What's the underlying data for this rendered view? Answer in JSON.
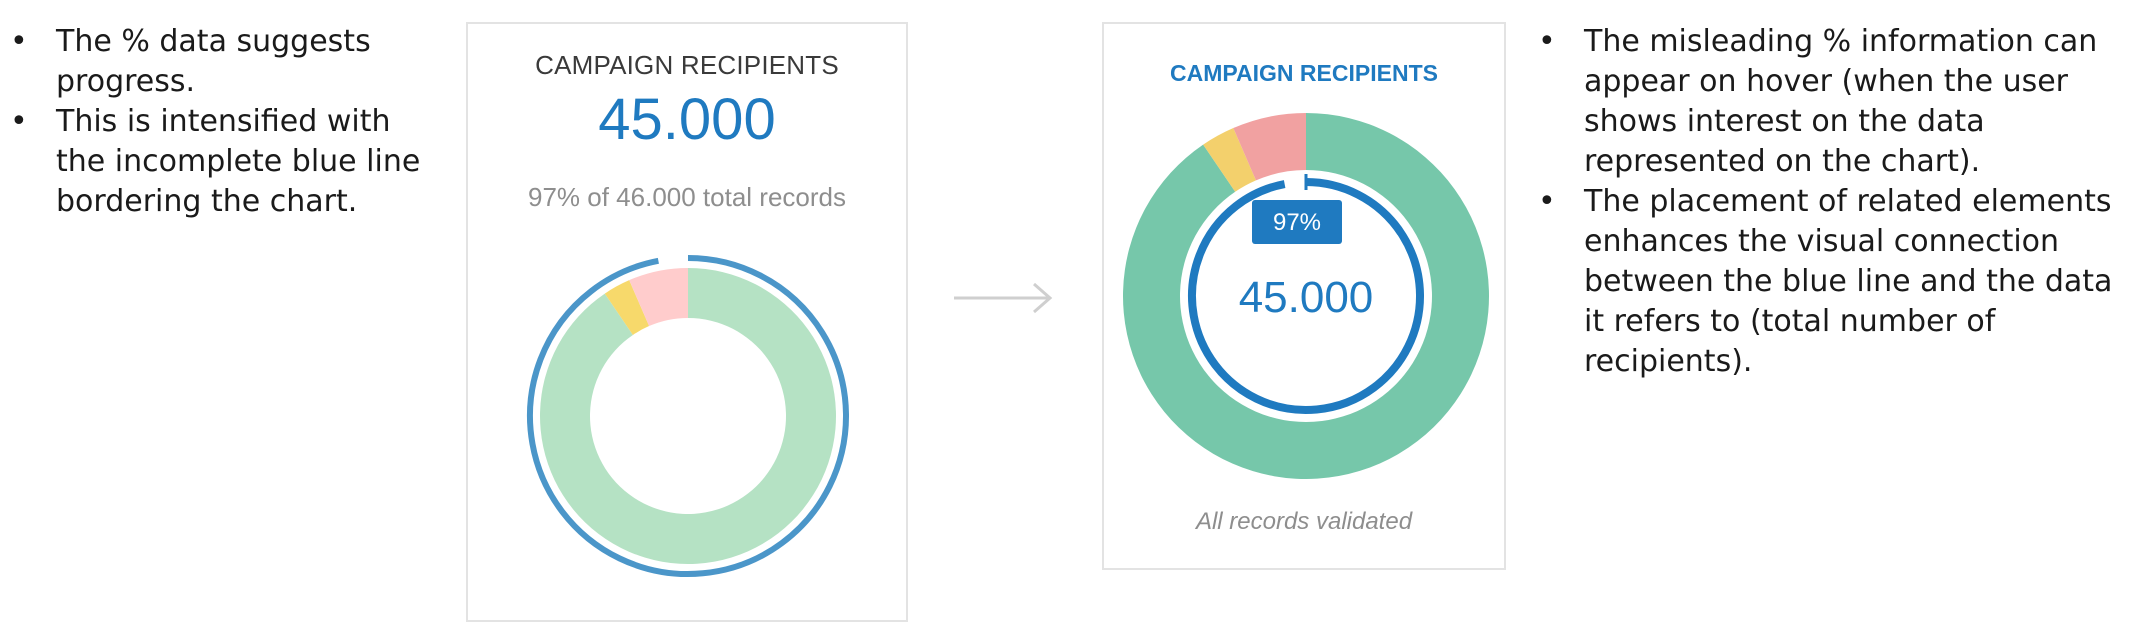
{
  "left_notes": [
    "The % data suggests progress.",
    "This is intensified with the incomplete blue line bordering the chart."
  ],
  "right_notes": [
    "The misleading % information can appear on hover (when the user shows interest on the data represented on the chart).",
    "The placement of related elements enhances the visual connection between the blue line and the data it refers to (total number of recipients)."
  ],
  "before_card": {
    "title": "CAMPAIGN RECIPIENTS",
    "value": "45.000",
    "subtext": "97% of 46.000 total records"
  },
  "after_card": {
    "title": "CAMPAIGN RECIPIENTS",
    "badge": "97%",
    "value": "45.000",
    "footer": "All records validated"
  },
  "donut": {
    "segments": [
      {
        "fraction": 0.905
      },
      {
        "fraction": 0.03
      },
      {
        "fraction": 0.065
      }
    ],
    "progress_fraction": 0.97
  },
  "colors": {
    "before_segments": [
      "#b5e2c4",
      "#f7d96b",
      "#ffcccc"
    ],
    "after_segments": [
      "#76c7aa",
      "#f3d06c",
      "#f1a1a1"
    ],
    "accent_blue": "#1f7ac0",
    "before_ring_blue": "#4b96c9",
    "arrow_gray": "#cfcfcf"
  }
}
